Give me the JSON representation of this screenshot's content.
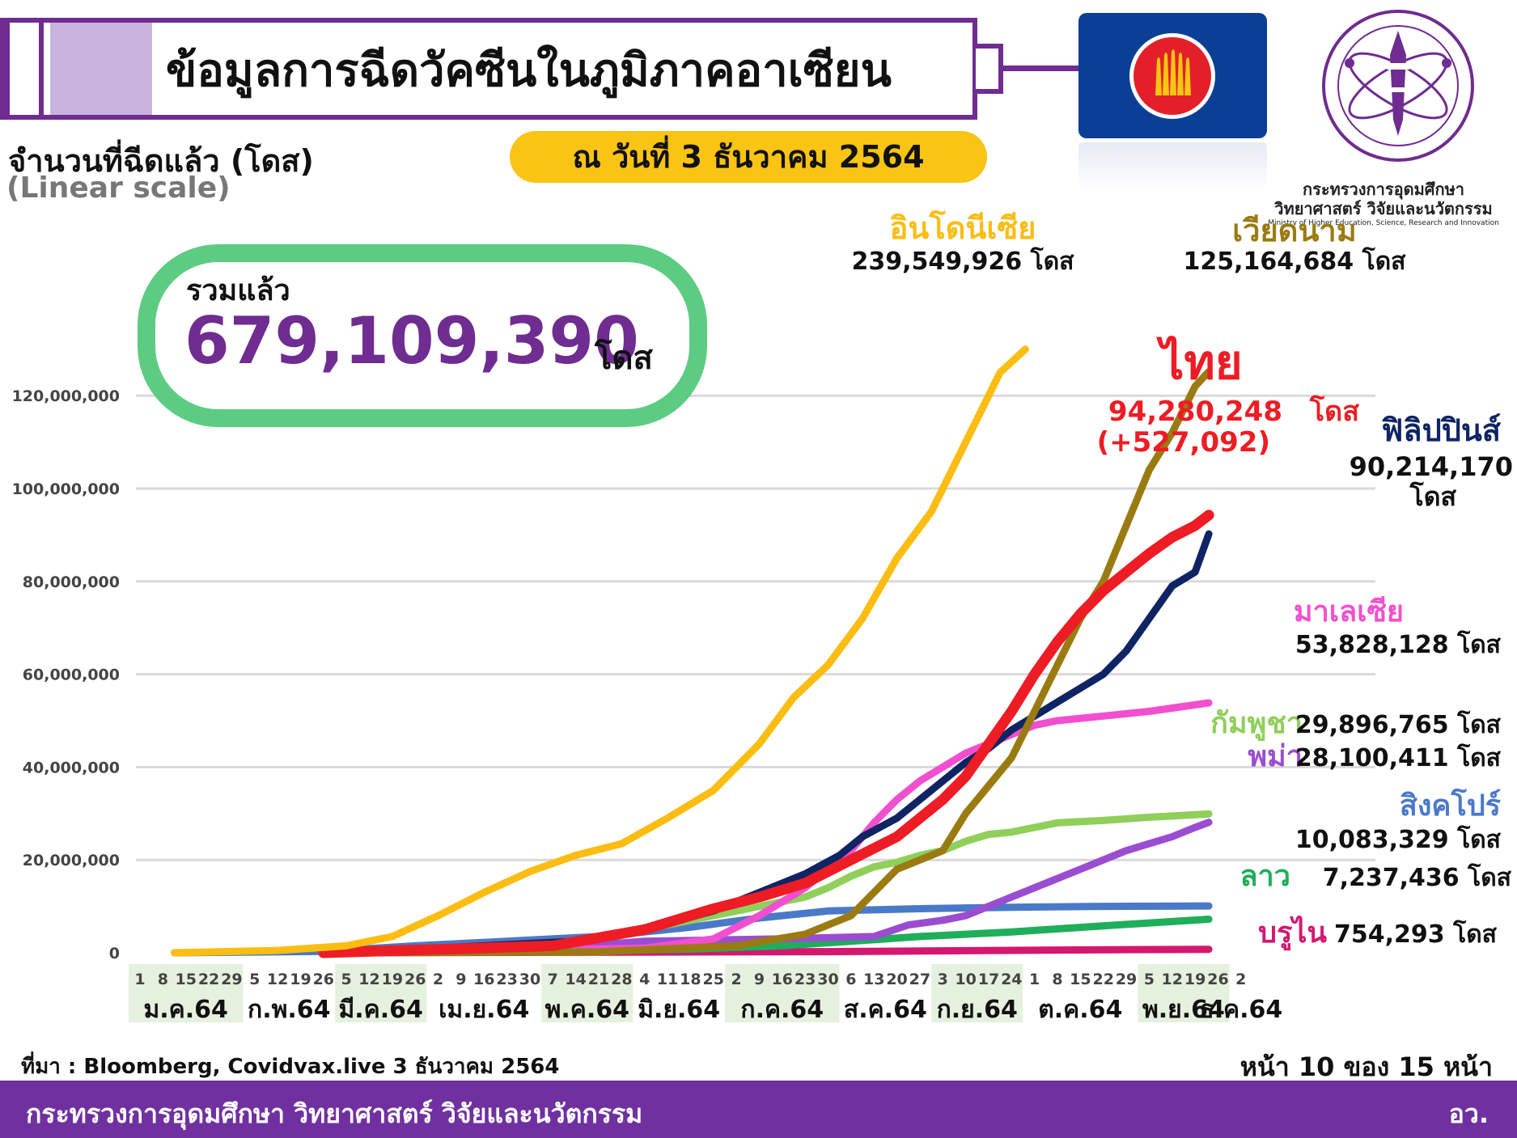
{
  "header": {
    "title": "ข้อมูลการฉีดวัคซีนในภูมิภาคอาเซียน",
    "date_label": "ณ วันที่ 3 ธันวาคม 2564",
    "y_axis_title": "จำนวนที่ฉีดแล้ว (โดส)",
    "scale_note": "(Linear scale)"
  },
  "ministry": {
    "name_th_line1": "กระทรวงการอุดมศึกษา",
    "name_th_line2": "วิทยาศาสตร์ วิจัยและนวัตกรรม",
    "name_en": "Ministry of Higher Education, Science, Research and Innovation"
  },
  "total": {
    "label": "รวมแล้ว",
    "value": "679,109,390",
    "unit": "โดส"
  },
  "footer": {
    "source": "ที่มา : Bloomberg, Covidvax.live 3 ธันวาคม 2564",
    "page": "หน้า 10 ของ 15 หน้า",
    "ministry": "กระทรวงการอุดมศึกษา วิทยาศาสตร์ วิจัยและนวัตกรรม",
    "abbr": "อว."
  },
  "colors": {
    "purple": "#6f2c91",
    "indonesia": "#fbbd12",
    "vietnam": "#9a7b12",
    "thailand": "#ee1c24",
    "philippines": "#0f2463",
    "malaysia": "#f24fd0",
    "cambodia": "#8fcf5a",
    "myanmar": "#9b4dd1",
    "singapore": "#4a79c8",
    "laos": "#1fae5b",
    "brunei": "#d4176f"
  },
  "chart_data": {
    "type": "line",
    "y_ticks": [
      0,
      20000000,
      40000000,
      60000000,
      80000000,
      100000000,
      120000000
    ],
    "y_tick_labels": [
      "0",
      "20,000,000",
      "40,000,000",
      "60,000,000",
      "80,000,000",
      "100,000,000",
      "120,000,000"
    ],
    "ylim": [
      0,
      130000000
    ],
    "grid": true,
    "x_weeks": [
      "1",
      "8",
      "15",
      "22",
      "29",
      "5",
      "12",
      "19",
      "26",
      "5",
      "12",
      "19",
      "26",
      "2",
      "9",
      "16",
      "23",
      "30",
      "7",
      "14",
      "21",
      "28",
      "4",
      "11",
      "18",
      "25",
      "2",
      "9",
      "16",
      "23",
      "30",
      "6",
      "13",
      "20",
      "27",
      "3",
      "10",
      "17",
      "24",
      "1",
      "8",
      "15",
      "22",
      "29",
      "5",
      "12",
      "19",
      "26",
      "2"
    ],
    "months": [
      {
        "label": "ม.ค.64",
        "start": 0,
        "end": 4,
        "shaded": true
      },
      {
        "label": "ก.พ.64",
        "start": 5,
        "end": 8,
        "shaded": false
      },
      {
        "label": "มี.ค.64",
        "start": 9,
        "end": 12,
        "shaded": true
      },
      {
        "label": "เม.ย.64",
        "start": 13,
        "end": 17,
        "shaded": false
      },
      {
        "label": "พ.ค.64",
        "start": 18,
        "end": 21,
        "shaded": true
      },
      {
        "label": "มิ.ย.64",
        "start": 22,
        "end": 25,
        "shaded": false
      },
      {
        "label": "ก.ค.64",
        "start": 26,
        "end": 30,
        "shaded": true
      },
      {
        "label": "ส.ค.64",
        "start": 31,
        "end": 34,
        "shaded": false
      },
      {
        "label": "ก.ย.64",
        "start": 35,
        "end": 38,
        "shaded": true
      },
      {
        "label": "ต.ค.64",
        "start": 39,
        "end": 43,
        "shaded": false
      },
      {
        "label": "พ.ย.64",
        "start": 44,
        "end": 47,
        "shaded": true
      },
      {
        "label": "ธ.ค.64",
        "start": 48,
        "end": 48,
        "shaded": false
      }
    ],
    "series": [
      {
        "name": "อินโดนีเซีย",
        "color": "#fbbd12",
        "label_value": "239,549,926 โดส",
        "points": [
          [
            1.5,
            0
          ],
          [
            6,
            500000
          ],
          [
            9,
            1500000
          ],
          [
            11,
            3500000
          ],
          [
            13,
            8000000
          ],
          [
            15,
            13000000
          ],
          [
            17,
            17500000
          ],
          [
            19,
            21000000
          ],
          [
            21,
            23500000
          ],
          [
            23,
            29000000
          ],
          [
            25,
            35000000
          ],
          [
            27,
            45000000
          ],
          [
            28.5,
            55000000
          ],
          [
            30,
            62000000
          ],
          [
            31.5,
            72000000
          ],
          [
            33,
            85000000
          ],
          [
            34.5,
            95000000
          ],
          [
            36,
            110000000
          ],
          [
            37.5,
            125000000
          ],
          [
            38.6,
            130000000
          ]
        ]
      },
      {
        "name": "เวียดนาม",
        "color": "#9a7b12",
        "label_value": "125,164,684 โดส",
        "points": [
          [
            9,
            0
          ],
          [
            20,
            200000
          ],
          [
            26,
            1500000
          ],
          [
            29,
            4000000
          ],
          [
            31,
            8000000
          ],
          [
            33,
            18000000
          ],
          [
            35,
            22000000
          ],
          [
            36,
            30000000
          ],
          [
            37,
            36000000
          ],
          [
            38,
            42000000
          ],
          [
            39,
            52000000
          ],
          [
            40,
            62000000
          ],
          [
            41,
            72000000
          ],
          [
            42,
            80000000
          ],
          [
            43,
            92000000
          ],
          [
            44,
            104000000
          ],
          [
            45,
            112000000
          ],
          [
            46,
            122000000
          ],
          [
            46.6,
            125200000
          ]
        ]
      },
      {
        "name": "ไทย",
        "color": "#ee1c24",
        "label_value": "94,280,248",
        "unit": "โดส",
        "extra": "(+527,092)",
        "points": [
          [
            8,
            0
          ],
          [
            18,
            1500000
          ],
          [
            22,
            5000000
          ],
          [
            25,
            9500000
          ],
          [
            27,
            12000000
          ],
          [
            29,
            15000000
          ],
          [
            31,
            20000000
          ],
          [
            33,
            25000000
          ],
          [
            35,
            33000000
          ],
          [
            36,
            38000000
          ],
          [
            37,
            45000000
          ],
          [
            38,
            52000000
          ],
          [
            39,
            60000000
          ],
          [
            40,
            67000000
          ],
          [
            41,
            73000000
          ],
          [
            42,
            78000000
          ],
          [
            43,
            82000000
          ],
          [
            44,
            86000000
          ],
          [
            45,
            89500000
          ],
          [
            46,
            92000000
          ],
          [
            46.6,
            94280248
          ]
        ]
      },
      {
        "name": "ฟิลิปปินส์",
        "color": "#0f2463",
        "label_value": "90,214,170",
        "unit": "โดส",
        "points": [
          [
            9,
            0
          ],
          [
            15,
            1500000
          ],
          [
            19,
            2500000
          ],
          [
            22,
            5000000
          ],
          [
            25,
            9000000
          ],
          [
            27,
            13000000
          ],
          [
            29,
            17000000
          ],
          [
            30.5,
            21000000
          ],
          [
            31.5,
            25000000
          ],
          [
            33,
            29000000
          ],
          [
            34,
            33000000
          ],
          [
            35,
            37000000
          ],
          [
            36,
            41000000
          ],
          [
            37,
            44000000
          ],
          [
            38,
            48000000
          ],
          [
            39,
            51000000
          ],
          [
            40,
            54000000
          ],
          [
            41,
            57000000
          ],
          [
            42,
            60000000
          ],
          [
            43,
            65000000
          ],
          [
            44,
            72000000
          ],
          [
            45,
            79000000
          ],
          [
            46,
            82000000
          ],
          [
            46.6,
            90214170
          ]
        ]
      },
      {
        "name": "มาเลเซีย",
        "color": "#f24fd0",
        "label_value": "53,828,128 โดส",
        "points": [
          [
            9,
            0
          ],
          [
            22,
            1000000
          ],
          [
            25,
            3000000
          ],
          [
            27,
            8000000
          ],
          [
            29,
            14000000
          ],
          [
            31,
            22000000
          ],
          [
            32,
            28000000
          ],
          [
            33,
            33000000
          ],
          [
            34,
            37000000
          ],
          [
            35,
            40000000
          ],
          [
            36,
            43000000
          ],
          [
            37,
            45000000
          ],
          [
            38,
            47000000
          ],
          [
            39,
            49000000
          ],
          [
            40,
            50000000
          ],
          [
            42,
            51000000
          ],
          [
            44,
            52000000
          ],
          [
            46.6,
            53828128
          ]
        ]
      },
      {
        "name": "กัมพูชา",
        "color": "#8fcf5a",
        "label_value": "29,896,765 โดส",
        "points": [
          [
            9,
            0
          ],
          [
            15,
            500000
          ],
          [
            18,
            2000000
          ],
          [
            21,
            4000000
          ],
          [
            24,
            7000000
          ],
          [
            27,
            10000000
          ],
          [
            29,
            12000000
          ],
          [
            30,
            14000000
          ],
          [
            31,
            16500000
          ],
          [
            32,
            18500000
          ],
          [
            33,
            19500000
          ],
          [
            34,
            21000000
          ],
          [
            35,
            22000000
          ],
          [
            36,
            24000000
          ],
          [
            37,
            25500000
          ],
          [
            38,
            26000000
          ],
          [
            39,
            27000000
          ],
          [
            40,
            28000000
          ],
          [
            42,
            28500000
          ],
          [
            44,
            29200000
          ],
          [
            46.6,
            29896765
          ]
        ]
      },
      {
        "name": "พม่า",
        "color": "#9b4dd1",
        "label_value": "28,100,411 โดส",
        "points": [
          [
            9,
            0
          ],
          [
            18,
            1000000
          ],
          [
            22,
            2500000
          ],
          [
            28,
            3000000
          ],
          [
            32,
            3500000
          ],
          [
            33.5,
            6000000
          ],
          [
            35,
            7000000
          ],
          [
            36,
            8000000
          ],
          [
            37,
            10000000
          ],
          [
            38,
            12000000
          ],
          [
            39,
            14000000
          ],
          [
            40,
            16000000
          ],
          [
            41,
            18000000
          ],
          [
            42,
            20000000
          ],
          [
            43,
            22000000
          ],
          [
            44,
            23500000
          ],
          [
            45,
            25000000
          ],
          [
            46,
            27000000
          ],
          [
            46.6,
            28100411
          ]
        ]
      },
      {
        "name": "สิงคโปร์",
        "color": "#4a79c8",
        "label_value": "10,083,329 โดส",
        "points": [
          [
            1.5,
            0
          ],
          [
            8,
            300000
          ],
          [
            12,
            1500000
          ],
          [
            16,
            2500000
          ],
          [
            20,
            3500000
          ],
          [
            24,
            5500000
          ],
          [
            27,
            7500000
          ],
          [
            30,
            9000000
          ],
          [
            34,
            9500000
          ],
          [
            38,
            9800000
          ],
          [
            42,
            10000000
          ],
          [
            46.6,
            10083329
          ]
        ]
      },
      {
        "name": "ลาว",
        "color": "#1fae5b",
        "label_value": "7,237,436 โดส",
        "points": [
          [
            9,
            0
          ],
          [
            18,
            300000
          ],
          [
            24,
            800000
          ],
          [
            28,
            1500000
          ],
          [
            31,
            2500000
          ],
          [
            34,
            3500000
          ],
          [
            38,
            4500000
          ],
          [
            42,
            5800000
          ],
          [
            46.6,
            7237436
          ]
        ]
      },
      {
        "name": "บรูไน",
        "color": "#d4176f",
        "label_value": "754,293 โดส",
        "points": [
          [
            9,
            0
          ],
          [
            30,
            250000
          ],
          [
            40,
            600000
          ],
          [
            46.6,
            754293
          ]
        ]
      }
    ]
  }
}
